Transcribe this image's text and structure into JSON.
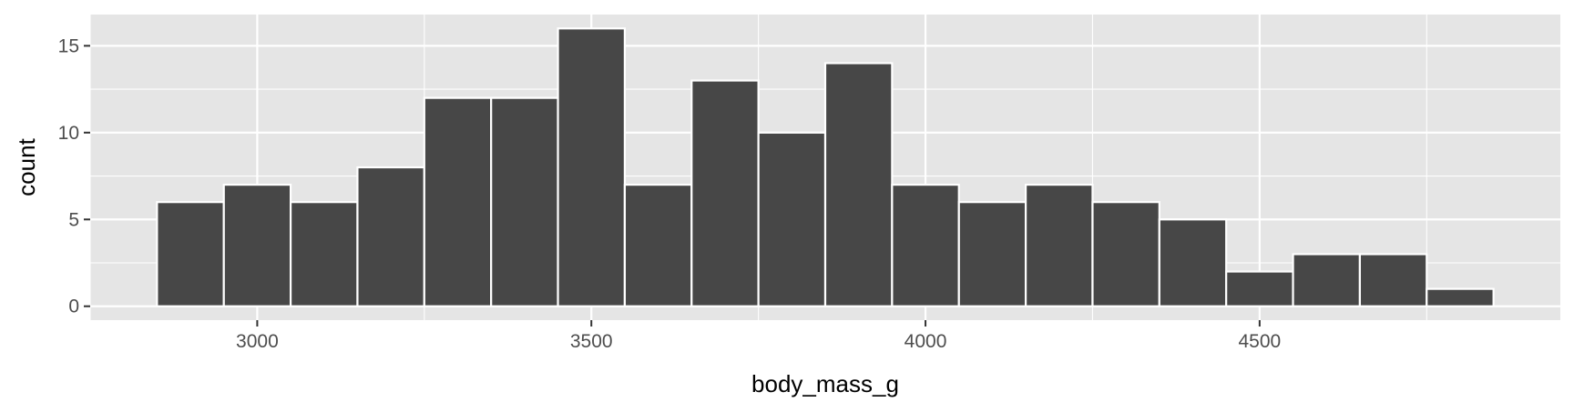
{
  "chart_data": {
    "type": "bar",
    "subtype": "histogram",
    "title": "",
    "xlabel": "body_mass_g",
    "ylabel": "count",
    "xlim": [
      2750,
      4950
    ],
    "ylim": [
      -0.8,
      16.8
    ],
    "grid": true,
    "bin_width": 100,
    "bins": [
      {
        "x0": 2850,
        "x1": 2950,
        "count": 6
      },
      {
        "x0": 2950,
        "x1": 3050,
        "count": 7
      },
      {
        "x0": 3050,
        "x1": 3150,
        "count": 6
      },
      {
        "x0": 3150,
        "x1": 3250,
        "count": 8
      },
      {
        "x0": 3250,
        "x1": 3350,
        "count": 12
      },
      {
        "x0": 3350,
        "x1": 3450,
        "count": 12
      },
      {
        "x0": 3450,
        "x1": 3550,
        "count": 16
      },
      {
        "x0": 3550,
        "x1": 3650,
        "count": 7
      },
      {
        "x0": 3650,
        "x1": 3750,
        "count": 13
      },
      {
        "x0": 3750,
        "x1": 3850,
        "count": 10
      },
      {
        "x0": 3850,
        "x1": 3950,
        "count": 14
      },
      {
        "x0": 3950,
        "x1": 4050,
        "count": 7
      },
      {
        "x0": 4050,
        "x1": 4150,
        "count": 6
      },
      {
        "x0": 4150,
        "x1": 4250,
        "count": 7
      },
      {
        "x0": 4250,
        "x1": 4350,
        "count": 6
      },
      {
        "x0": 4350,
        "x1": 4450,
        "count": 5
      },
      {
        "x0": 4450,
        "x1": 4550,
        "count": 2
      },
      {
        "x0": 4550,
        "x1": 4650,
        "count": 3
      },
      {
        "x0": 4650,
        "x1": 4750,
        "count": 3
      },
      {
        "x0": 4750,
        "x1": 4850,
        "count": 1
      }
    ],
    "x_ticks": [
      {
        "value": 3000,
        "label": "3000"
      },
      {
        "value": 3500,
        "label": "3500"
      },
      {
        "value": 4000,
        "label": "4000"
      },
      {
        "value": 4500,
        "label": "4500"
      }
    ],
    "y_ticks": [
      {
        "value": 0,
        "label": "0"
      },
      {
        "value": 5,
        "label": "5"
      },
      {
        "value": 10,
        "label": "10"
      },
      {
        "value": 15,
        "label": "15"
      }
    ],
    "colors": {
      "panel_background": "#e5e5e5",
      "grid_line": "#ffffff",
      "bar_fill": "#474747",
      "bar_outline": "#ffffff",
      "tick_mark": "#333333",
      "tick_label": "#4d4d4d"
    }
  }
}
